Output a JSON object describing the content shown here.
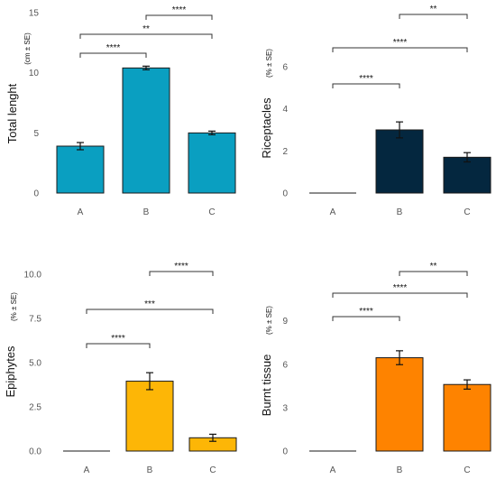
{
  "chart_data": [
    {
      "type": "bar",
      "ylabel": "Total lenght",
      "yunit": "(cm ± SE)",
      "categories": [
        "A",
        "B",
        "C"
      ],
      "values": [
        3.9,
        10.4,
        5.0
      ],
      "errors": [
        0.3,
        0.15,
        0.15
      ],
      "ylim": [
        0,
        15
      ],
      "yticks": [
        0,
        5,
        10,
        15
      ],
      "ytick_labels": [
        "0",
        "5",
        "10",
        "15"
      ],
      "color": "#0a9fc1",
      "grid": false,
      "significance": [
        {
          "from": "A",
          "to": "B",
          "label": "****"
        },
        {
          "from": "A",
          "to": "C",
          "label": "**"
        },
        {
          "from": "B",
          "to": "C",
          "label": "****"
        }
      ]
    },
    {
      "type": "bar",
      "ylabel": "Riceptacles",
      "yunit": "(% ± SE)",
      "categories": [
        "A",
        "B",
        "C"
      ],
      "values": [
        0.0,
        3.0,
        1.7
      ],
      "errors": [
        0.0,
        0.38,
        0.22
      ],
      "ylim": [
        0,
        7.2
      ],
      "yticks": [
        0,
        2,
        4,
        6
      ],
      "ytick_labels": [
        "0",
        "2",
        "4",
        "6"
      ],
      "color": "#04273f",
      "grid": false,
      "significance": [
        {
          "from": "A",
          "to": "B",
          "label": "****"
        },
        {
          "from": "A",
          "to": "C",
          "label": "****"
        },
        {
          "from": "B",
          "to": "C",
          "label": "**"
        }
      ]
    },
    {
      "type": "bar",
      "ylabel": "Epiphytes",
      "yunit": "(% ± SE)",
      "categories": [
        "A",
        "B",
        "C"
      ],
      "values": [
        0.0,
        3.95,
        0.75
      ],
      "errors": [
        0.0,
        0.48,
        0.2
      ],
      "ylim": [
        0,
        10.2
      ],
      "yticks": [
        0,
        2.5,
        5,
        7.5,
        10
      ],
      "ytick_labels": [
        "0.0",
        "2.5",
        "5.0",
        "7.5",
        "10.0"
      ],
      "color": "#fdb606",
      "grid": false,
      "significance": [
        {
          "from": "A",
          "to": "B",
          "label": "****"
        },
        {
          "from": "A",
          "to": "C",
          "label": "***"
        },
        {
          "from": "B",
          "to": "C",
          "label": "****"
        }
      ]
    },
    {
      "type": "bar",
      "ylabel": "Burnt tissue",
      "yunit": "(% ± SE)",
      "categories": [
        "A",
        "B",
        "C"
      ],
      "values": [
        0.0,
        6.45,
        4.6
      ],
      "errors": [
        0.0,
        0.48,
        0.32
      ],
      "ylim": [
        0,
        10.6
      ],
      "yticks": [
        0,
        3,
        6,
        9
      ],
      "ytick_labels": [
        "0",
        "3",
        "6",
        "9"
      ],
      "color": "#fe8300",
      "grid": false,
      "significance": [
        {
          "from": "A",
          "to": "B",
          "label": "****"
        },
        {
          "from": "A",
          "to": "C",
          "label": "****"
        },
        {
          "from": "B",
          "to": "C",
          "label": "**"
        }
      ]
    }
  ]
}
